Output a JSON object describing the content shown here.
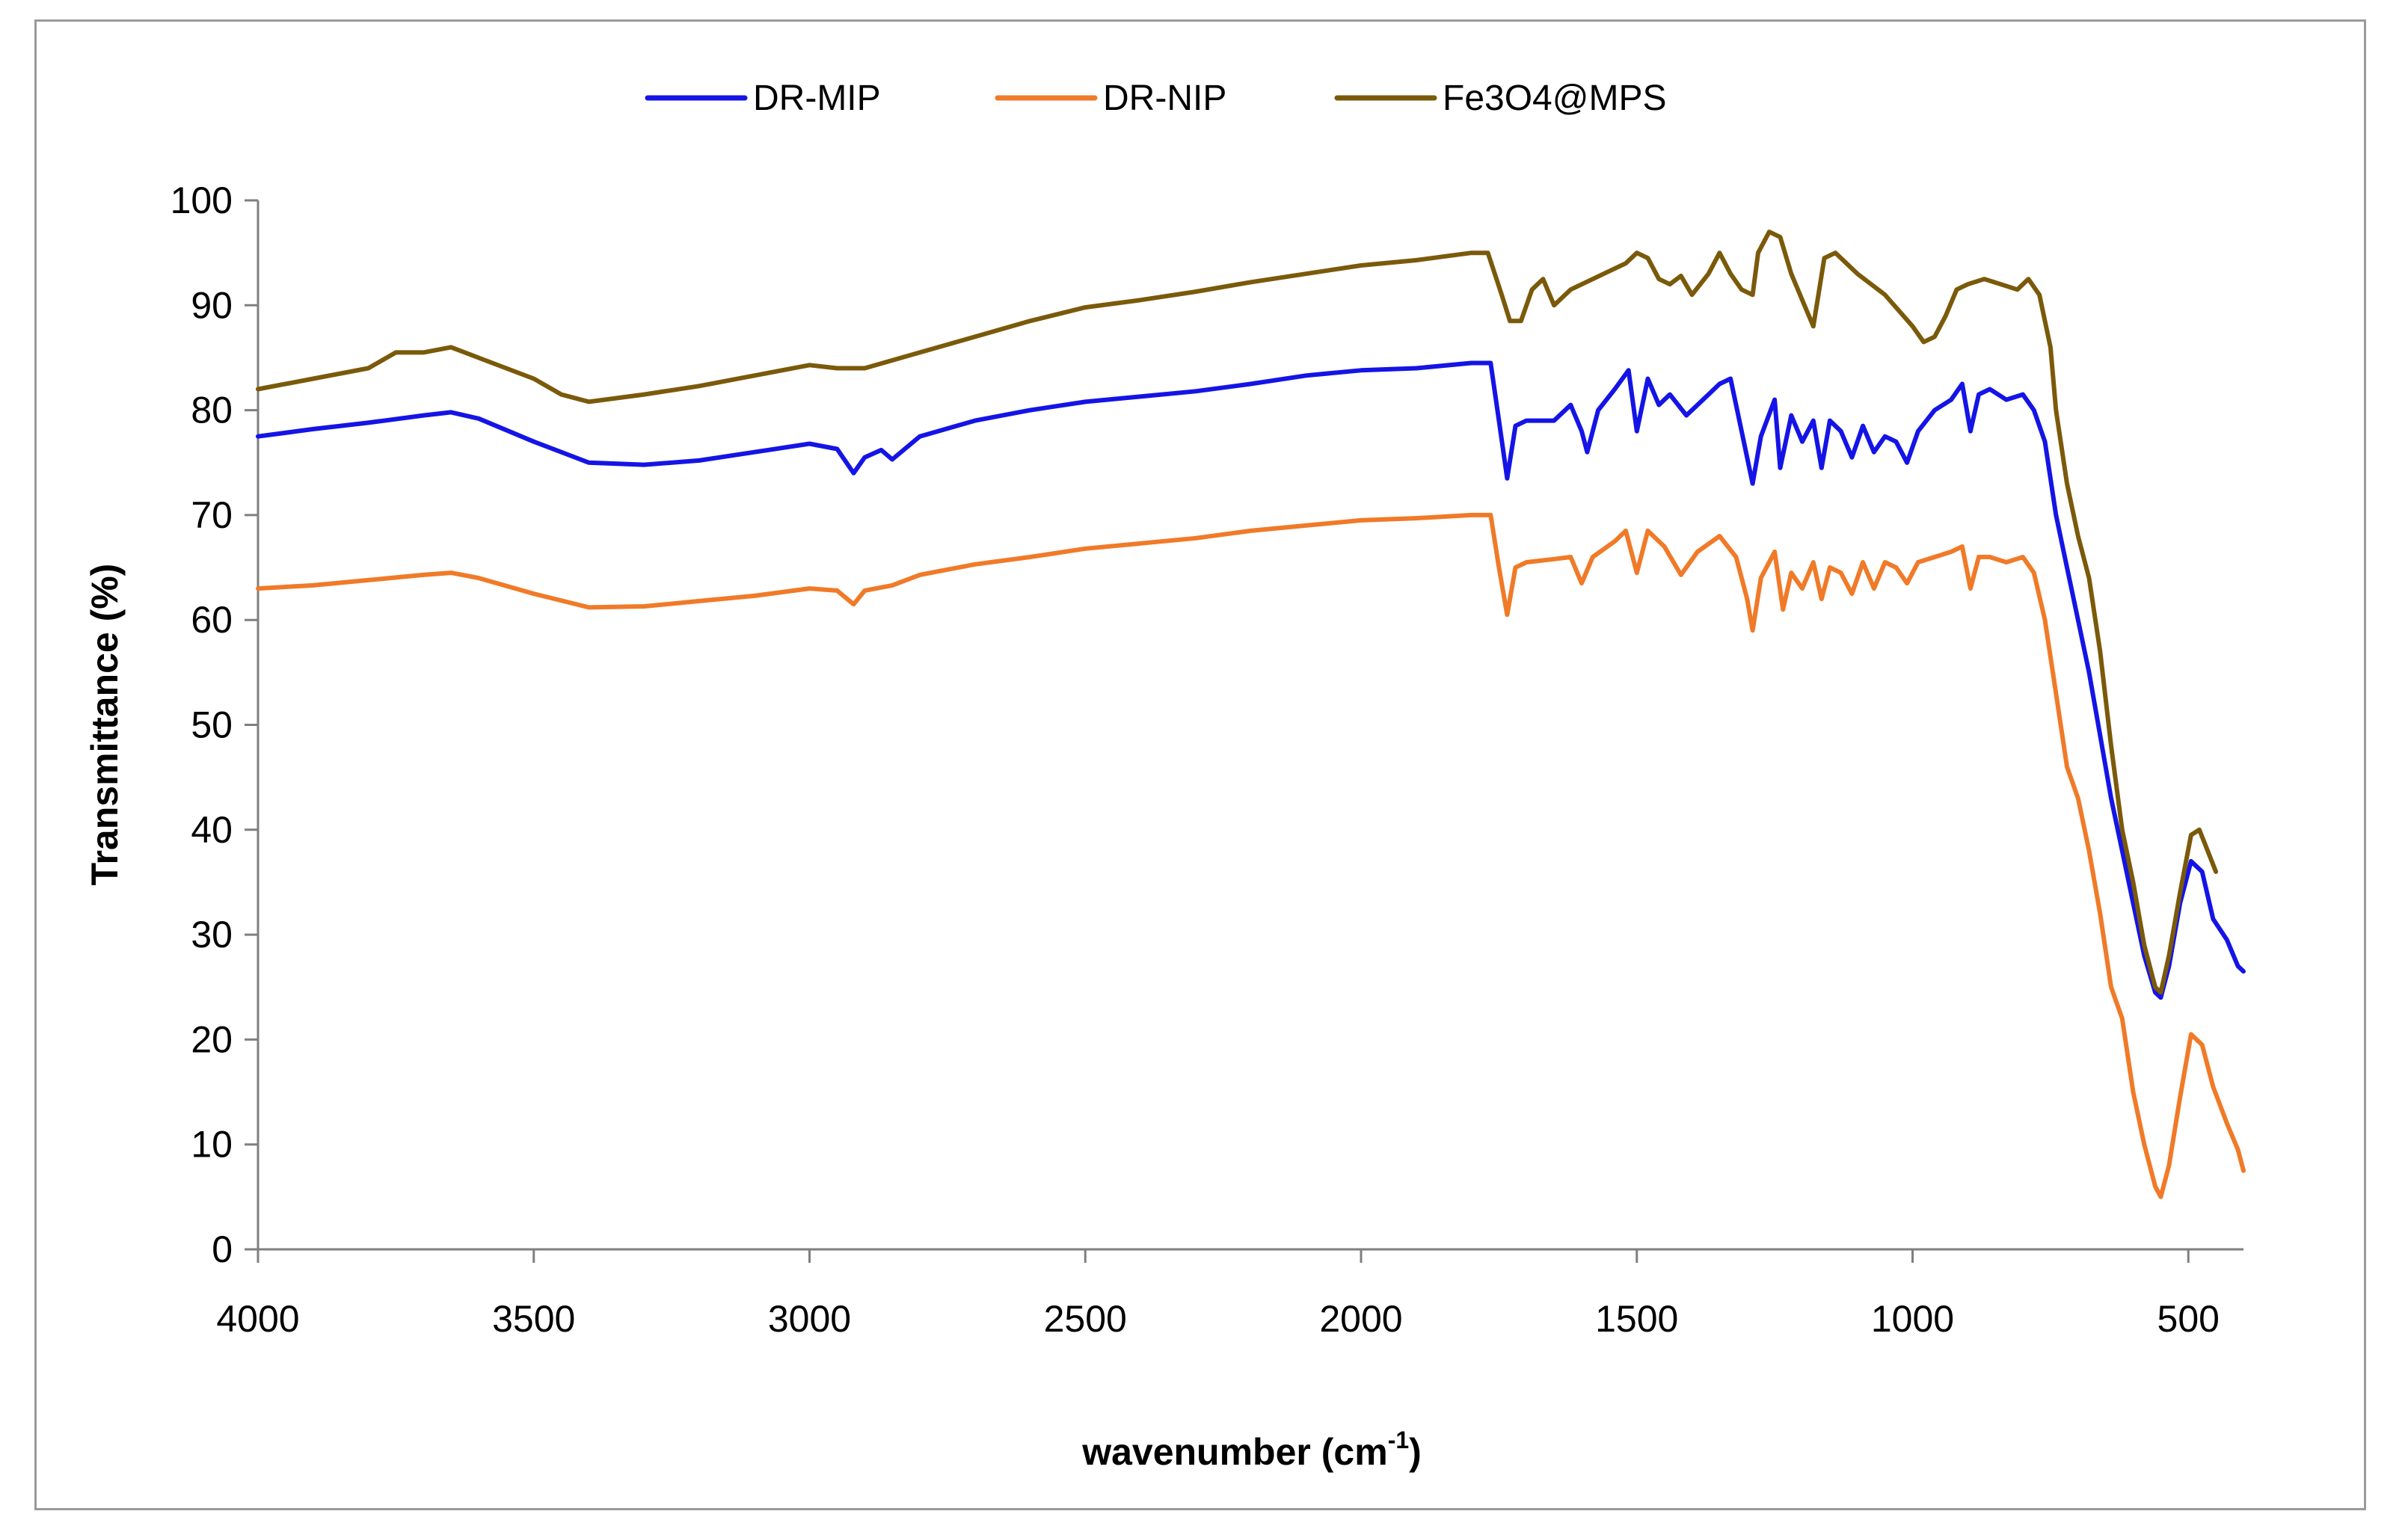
{
  "chart_data": {
    "type": "line",
    "title": "",
    "xlabel": "wavenumber (cm",
    "xlabel_sup": "-1",
    "xlabel_close": ")",
    "ylabel": "Transmittance (%)",
    "xlim": [
      4000,
      400
    ],
    "ylim": [
      0,
      100
    ],
    "x_ticks": [
      4000,
      3500,
      3000,
      2500,
      2000,
      1500,
      1000,
      500
    ],
    "y_ticks": [
      0,
      10,
      20,
      30,
      40,
      50,
      60,
      70,
      80,
      90,
      100
    ],
    "legend_position": "top-center",
    "series": [
      {
        "name": "DR-MIP",
        "color": "#1414e6",
        "points": [
          [
            4000,
            77.5
          ],
          [
            3900,
            78.2
          ],
          [
            3800,
            78.8
          ],
          [
            3700,
            79.5
          ],
          [
            3650,
            79.8
          ],
          [
            3600,
            79.2
          ],
          [
            3500,
            77.0
          ],
          [
            3400,
            75.0
          ],
          [
            3300,
            74.8
          ],
          [
            3200,
            75.2
          ],
          [
            3100,
            76.0
          ],
          [
            3000,
            76.8
          ],
          [
            2950,
            76.3
          ],
          [
            2920,
            74.0
          ],
          [
            2900,
            75.5
          ],
          [
            2870,
            76.2
          ],
          [
            2850,
            75.3
          ],
          [
            2800,
            77.5
          ],
          [
            2700,
            79.0
          ],
          [
            2600,
            80.0
          ],
          [
            2500,
            80.8
          ],
          [
            2400,
            81.3
          ],
          [
            2300,
            81.8
          ],
          [
            2200,
            82.5
          ],
          [
            2100,
            83.3
          ],
          [
            2000,
            83.8
          ],
          [
            1900,
            84.0
          ],
          [
            1800,
            84.5
          ],
          [
            1765,
            84.5
          ],
          [
            1750,
            79.0
          ],
          [
            1735,
            73.5
          ],
          [
            1720,
            78.5
          ],
          [
            1700,
            79.0
          ],
          [
            1650,
            79.0
          ],
          [
            1620,
            80.5
          ],
          [
            1600,
            78.0
          ],
          [
            1590,
            76.0
          ],
          [
            1570,
            80.0
          ],
          [
            1540,
            82.0
          ],
          [
            1515,
            83.8
          ],
          [
            1500,
            78.0
          ],
          [
            1480,
            83.0
          ],
          [
            1460,
            80.5
          ],
          [
            1440,
            81.5
          ],
          [
            1410,
            79.5
          ],
          [
            1380,
            81.0
          ],
          [
            1350,
            82.5
          ],
          [
            1330,
            83.0
          ],
          [
            1310,
            78.0
          ],
          [
            1290,
            73.0
          ],
          [
            1275,
            77.5
          ],
          [
            1250,
            81.0
          ],
          [
            1240,
            74.5
          ],
          [
            1220,
            79.5
          ],
          [
            1200,
            77.0
          ],
          [
            1180,
            79.0
          ],
          [
            1165,
            74.5
          ],
          [
            1150,
            79.0
          ],
          [
            1130,
            78.0
          ],
          [
            1110,
            75.5
          ],
          [
            1090,
            78.5
          ],
          [
            1070,
            76.0
          ],
          [
            1050,
            77.5
          ],
          [
            1030,
            77.0
          ],
          [
            1010,
            75.0
          ],
          [
            990,
            78.0
          ],
          [
            960,
            80.0
          ],
          [
            930,
            81.0
          ],
          [
            910,
            82.5
          ],
          [
            895,
            78.0
          ],
          [
            880,
            81.5
          ],
          [
            860,
            82.0
          ],
          [
            830,
            81.0
          ],
          [
            800,
            81.5
          ],
          [
            780,
            80.0
          ],
          [
            760,
            77.0
          ],
          [
            740,
            70.0
          ],
          [
            720,
            65.0
          ],
          [
            700,
            60.0
          ],
          [
            680,
            55.0
          ],
          [
            660,
            49.0
          ],
          [
            640,
            43.0
          ],
          [
            620,
            38.0
          ],
          [
            600,
            33.0
          ],
          [
            580,
            28.0
          ],
          [
            560,
            24.5
          ],
          [
            550,
            24.0
          ],
          [
            535,
            27.0
          ],
          [
            515,
            33.0
          ],
          [
            495,
            37.0
          ],
          [
            475,
            36.0
          ],
          [
            455,
            31.5
          ],
          [
            430,
            29.5
          ],
          [
            410,
            27.0
          ],
          [
            400,
            26.5
          ]
        ]
      },
      {
        "name": "DR-NIP",
        "color": "#f07a28",
        "points": [
          [
            4000,
            63.0
          ],
          [
            3900,
            63.3
          ],
          [
            3800,
            63.8
          ],
          [
            3700,
            64.3
          ],
          [
            3650,
            64.5
          ],
          [
            3600,
            64.0
          ],
          [
            3500,
            62.5
          ],
          [
            3400,
            61.2
          ],
          [
            3300,
            61.3
          ],
          [
            3200,
            61.8
          ],
          [
            3100,
            62.3
          ],
          [
            3000,
            63.0
          ],
          [
            2950,
            62.8
          ],
          [
            2920,
            61.5
          ],
          [
            2900,
            62.8
          ],
          [
            2850,
            63.3
          ],
          [
            2800,
            64.3
          ],
          [
            2700,
            65.3
          ],
          [
            2600,
            66.0
          ],
          [
            2500,
            66.8
          ],
          [
            2400,
            67.3
          ],
          [
            2300,
            67.8
          ],
          [
            2200,
            68.5
          ],
          [
            2100,
            69.0
          ],
          [
            2000,
            69.5
          ],
          [
            1900,
            69.7
          ],
          [
            1800,
            70.0
          ],
          [
            1765,
            70.0
          ],
          [
            1750,
            65.0
          ],
          [
            1735,
            60.5
          ],
          [
            1720,
            65.0
          ],
          [
            1700,
            65.5
          ],
          [
            1650,
            65.8
          ],
          [
            1620,
            66.0
          ],
          [
            1600,
            63.5
          ],
          [
            1580,
            66.0
          ],
          [
            1540,
            67.5
          ],
          [
            1520,
            68.5
          ],
          [
            1500,
            64.5
          ],
          [
            1480,
            68.5
          ],
          [
            1450,
            67.0
          ],
          [
            1420,
            64.3
          ],
          [
            1390,
            66.5
          ],
          [
            1350,
            68.0
          ],
          [
            1320,
            66.0
          ],
          [
            1300,
            62.0
          ],
          [
            1290,
            59.0
          ],
          [
            1275,
            64.0
          ],
          [
            1250,
            66.5
          ],
          [
            1235,
            61.0
          ],
          [
            1220,
            64.5
          ],
          [
            1200,
            63.0
          ],
          [
            1180,
            65.5
          ],
          [
            1165,
            62.0
          ],
          [
            1150,
            65.0
          ],
          [
            1130,
            64.5
          ],
          [
            1110,
            62.5
          ],
          [
            1090,
            65.5
          ],
          [
            1070,
            63.0
          ],
          [
            1050,
            65.5
          ],
          [
            1030,
            65.0
          ],
          [
            1010,
            63.5
          ],
          [
            990,
            65.5
          ],
          [
            960,
            66.0
          ],
          [
            930,
            66.5
          ],
          [
            910,
            67.0
          ],
          [
            895,
            63.0
          ],
          [
            880,
            66.0
          ],
          [
            860,
            66.0
          ],
          [
            830,
            65.5
          ],
          [
            800,
            66.0
          ],
          [
            780,
            64.5
          ],
          [
            760,
            60.0
          ],
          [
            740,
            53.0
          ],
          [
            720,
            46.0
          ],
          [
            700,
            43.0
          ],
          [
            680,
            38.0
          ],
          [
            660,
            32.0
          ],
          [
            640,
            25.0
          ],
          [
            620,
            22.0
          ],
          [
            600,
            15.0
          ],
          [
            580,
            10.0
          ],
          [
            560,
            6.0
          ],
          [
            550,
            5.0
          ],
          [
            535,
            8.0
          ],
          [
            515,
            14.5
          ],
          [
            495,
            20.5
          ],
          [
            475,
            19.5
          ],
          [
            455,
            15.5
          ],
          [
            430,
            12.0
          ],
          [
            410,
            9.5
          ],
          [
            400,
            7.5
          ]
        ]
      },
      {
        "name": "Fe3O4@MPS",
        "color": "#7a5a0a",
        "points": [
          [
            4000,
            82.0
          ],
          [
            3900,
            83.0
          ],
          [
            3800,
            84.0
          ],
          [
            3750,
            85.5
          ],
          [
            3700,
            85.5
          ],
          [
            3650,
            86.0
          ],
          [
            3600,
            85.0
          ],
          [
            3500,
            83.0
          ],
          [
            3450,
            81.5
          ],
          [
            3400,
            80.8
          ],
          [
            3300,
            81.5
          ],
          [
            3200,
            82.3
          ],
          [
            3100,
            83.3
          ],
          [
            3000,
            84.3
          ],
          [
            2950,
            84.0
          ],
          [
            2900,
            84.0
          ],
          [
            2800,
            85.5
          ],
          [
            2700,
            87.0
          ],
          [
            2600,
            88.5
          ],
          [
            2500,
            89.8
          ],
          [
            2400,
            90.5
          ],
          [
            2300,
            91.3
          ],
          [
            2200,
            92.2
          ],
          [
            2100,
            93.0
          ],
          [
            2000,
            93.8
          ],
          [
            1900,
            94.3
          ],
          [
            1800,
            95.0
          ],
          [
            1770,
            95.0
          ],
          [
            1745,
            91.0
          ],
          [
            1730,
            88.5
          ],
          [
            1710,
            88.5
          ],
          [
            1690,
            91.5
          ],
          [
            1670,
            92.5
          ],
          [
            1650,
            90.0
          ],
          [
            1620,
            91.5
          ],
          [
            1560,
            93.0
          ],
          [
            1520,
            94.0
          ],
          [
            1500,
            95.0
          ],
          [
            1480,
            94.5
          ],
          [
            1460,
            92.5
          ],
          [
            1440,
            92.0
          ],
          [
            1420,
            92.8
          ],
          [
            1400,
            91.0
          ],
          [
            1370,
            93.0
          ],
          [
            1350,
            95.0
          ],
          [
            1330,
            93.0
          ],
          [
            1310,
            91.5
          ],
          [
            1290,
            91.0
          ],
          [
            1280,
            95.0
          ],
          [
            1260,
            97.0
          ],
          [
            1240,
            96.5
          ],
          [
            1220,
            93.0
          ],
          [
            1200,
            90.5
          ],
          [
            1180,
            88.0
          ],
          [
            1160,
            94.5
          ],
          [
            1140,
            95.0
          ],
          [
            1100,
            93.0
          ],
          [
            1050,
            91.0
          ],
          [
            1000,
            88.0
          ],
          [
            980,
            86.5
          ],
          [
            960,
            87.0
          ],
          [
            940,
            89.0
          ],
          [
            920,
            91.5
          ],
          [
            900,
            92.0
          ],
          [
            870,
            92.5
          ],
          [
            840,
            92.0
          ],
          [
            810,
            91.5
          ],
          [
            790,
            92.5
          ],
          [
            770,
            91.0
          ],
          [
            750,
            86.0
          ],
          [
            740,
            80.0
          ],
          [
            720,
            73.0
          ],
          [
            700,
            68.0
          ],
          [
            680,
            64.0
          ],
          [
            660,
            57.0
          ],
          [
            640,
            48.0
          ],
          [
            620,
            40.0
          ],
          [
            600,
            35.0
          ],
          [
            580,
            29.0
          ],
          [
            560,
            25.0
          ],
          [
            550,
            24.5
          ],
          [
            535,
            28.0
          ],
          [
            515,
            34.0
          ],
          [
            495,
            39.5
          ],
          [
            480,
            40.0
          ],
          [
            465,
            38.0
          ],
          [
            450,
            36.0
          ]
        ]
      }
    ]
  }
}
